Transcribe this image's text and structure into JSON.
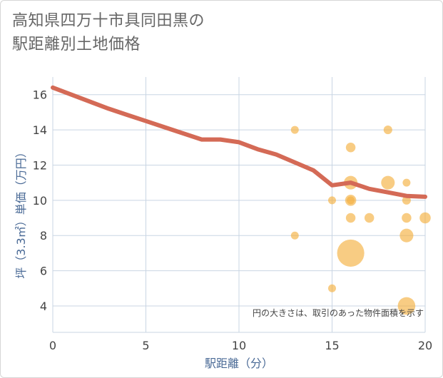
{
  "chart_data": {
    "type": "scatter",
    "title_lines": [
      "高知県四万十市具同田黒の",
      "駅距離別土地価格"
    ],
    "xlabel": "駅距離（分）",
    "ylabel": "坪（3.3㎡）単価（万円）",
    "xlim": [
      0,
      20
    ],
    "ylim": [
      2.5,
      17
    ],
    "x_ticks": [
      0,
      5,
      10,
      15,
      20
    ],
    "y_ticks": [
      4,
      6,
      8,
      10,
      12,
      14,
      16
    ],
    "grid": true,
    "note": "円の大きさは、取引のあった物件面積を示す",
    "colors": {
      "bubble": "#f5b041",
      "trend": "#d46a56",
      "grid": "#c9d5e3",
      "axis_text": "#4a6a96"
    },
    "bubbles": [
      {
        "x": 13,
        "y": 14,
        "size": 1
      },
      {
        "x": 13,
        "y": 8,
        "size": 1
      },
      {
        "x": 15,
        "y": 10,
        "size": 1
      },
      {
        "x": 15,
        "y": 5,
        "size": 1
      },
      {
        "x": 16,
        "y": 13,
        "size": 1.5
      },
      {
        "x": 16,
        "y": 11,
        "size": 3
      },
      {
        "x": 16,
        "y": 10,
        "size": 2
      },
      {
        "x": 16,
        "y": 10,
        "size": 1
      },
      {
        "x": 16,
        "y": 9,
        "size": 1.5
      },
      {
        "x": 16,
        "y": 7,
        "size": 12
      },
      {
        "x": 17,
        "y": 9,
        "size": 1.5
      },
      {
        "x": 18,
        "y": 14,
        "size": 1.2
      },
      {
        "x": 18,
        "y": 11,
        "size": 3
      },
      {
        "x": 19,
        "y": 11,
        "size": 1
      },
      {
        "x": 19,
        "y": 10,
        "size": 1.2
      },
      {
        "x": 19,
        "y": 9,
        "size": 1.5
      },
      {
        "x": 19,
        "y": 8,
        "size": 3
      },
      {
        "x": 19,
        "y": 4,
        "size": 5
      },
      {
        "x": 20,
        "y": 9,
        "size": 2
      }
    ],
    "trend_line": {
      "x": [
        0,
        1,
        2,
        3,
        4,
        5,
        6,
        7,
        8,
        9,
        10,
        11,
        12,
        13,
        14,
        15,
        16,
        17,
        18,
        19,
        20
      ],
      "y": [
        16.4,
        16.0,
        15.6,
        15.2,
        14.85,
        14.5,
        14.15,
        13.8,
        13.45,
        13.45,
        13.3,
        12.9,
        12.6,
        12.15,
        11.7,
        10.85,
        11.0,
        10.65,
        10.45,
        10.25,
        10.2
      ]
    }
  }
}
